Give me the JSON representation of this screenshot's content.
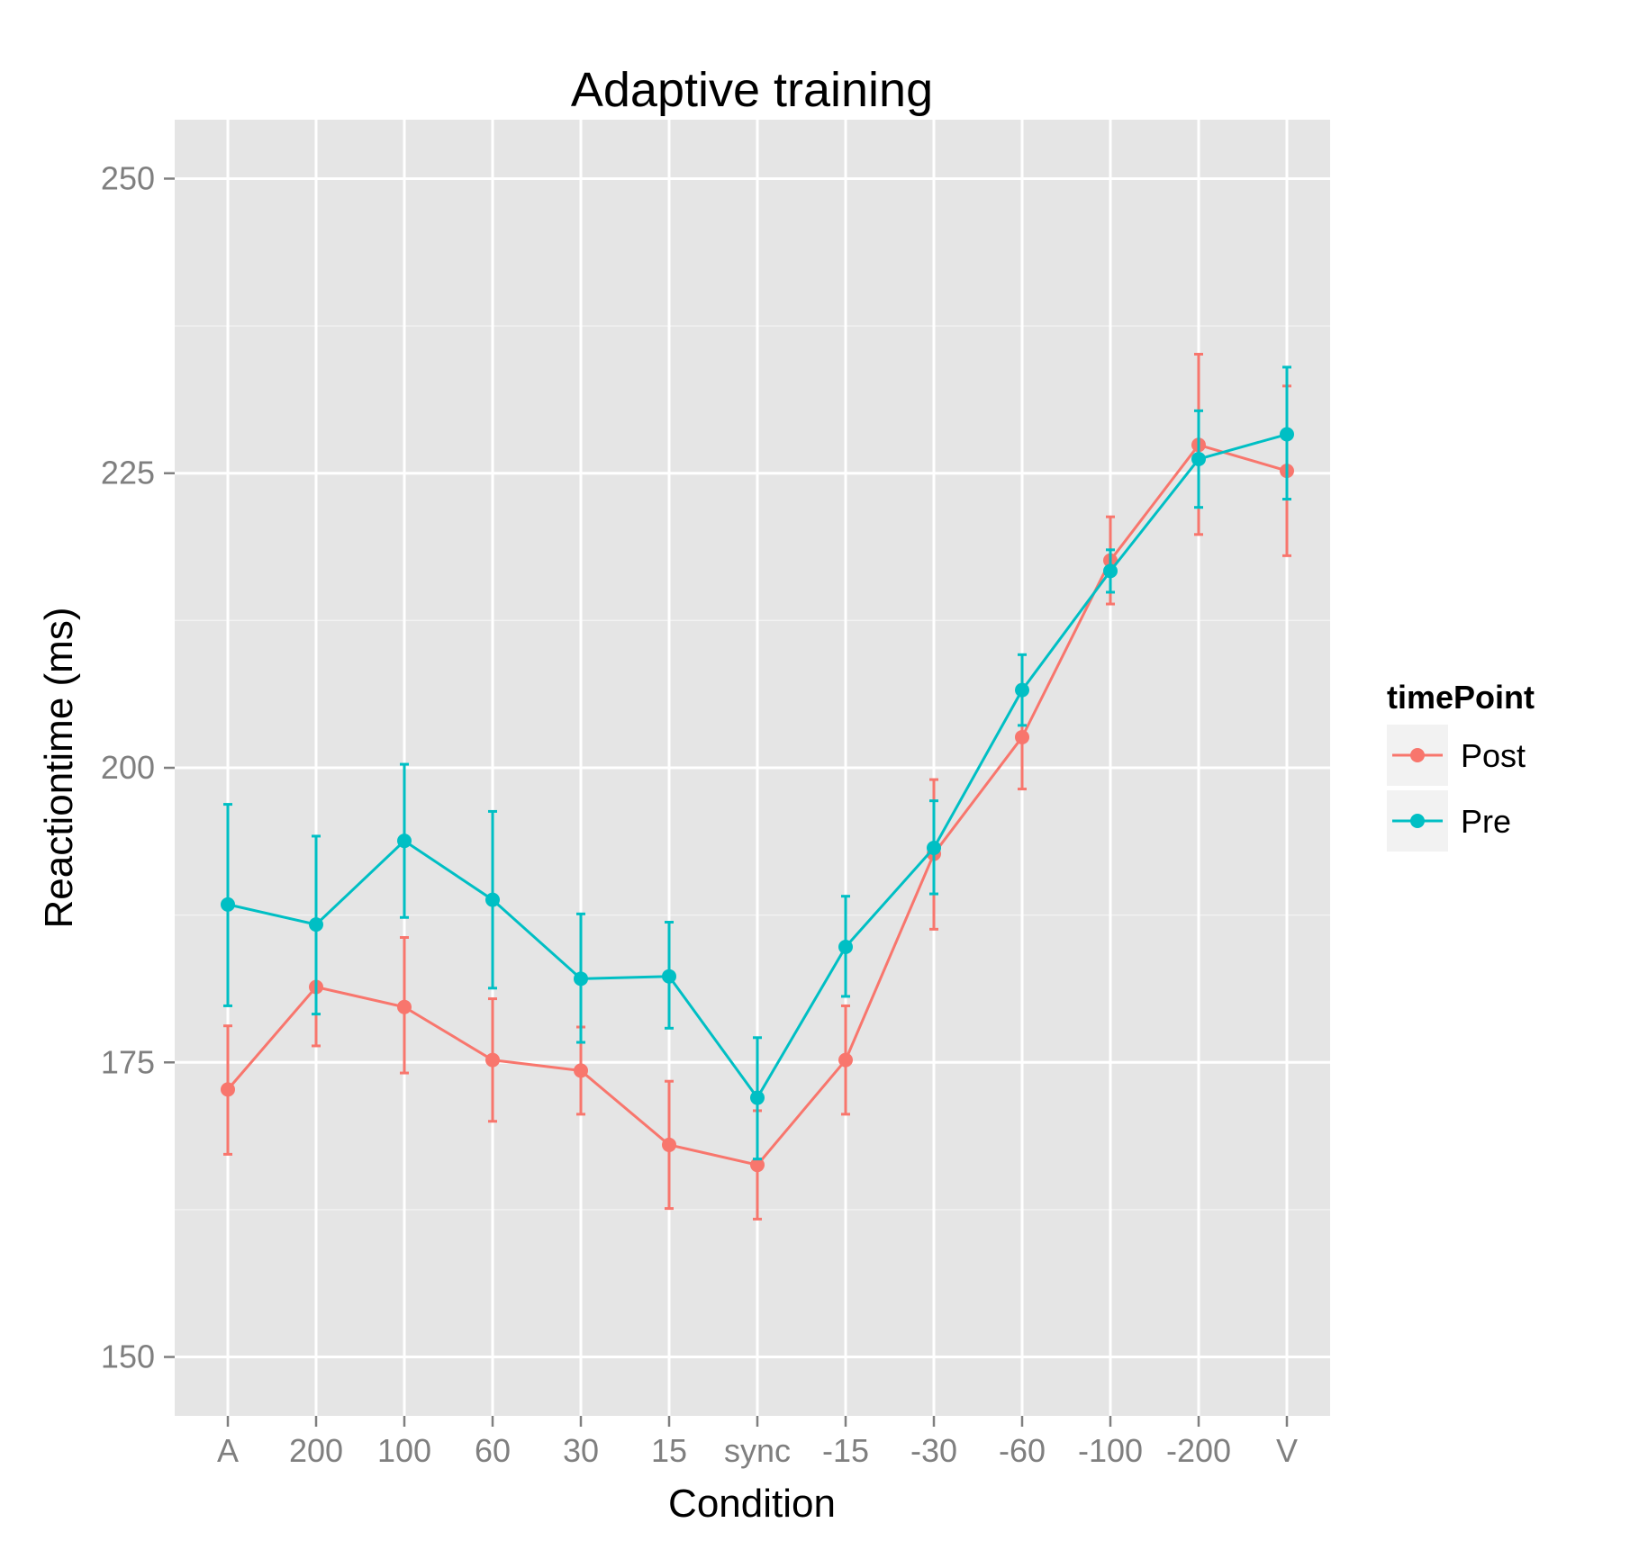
{
  "chart_data": {
    "type": "line",
    "title": "Adaptive training",
    "xlabel": "Condition",
    "ylabel": "Reactiontime (ms)",
    "categories": [
      "A",
      "200",
      "100",
      "60",
      "30",
      "15",
      "sync",
      "-15",
      "-30",
      "-60",
      "-100",
      "-200",
      "V"
    ],
    "ylim": [
      145,
      255
    ],
    "yticks": [
      150,
      175,
      200,
      225,
      250
    ],
    "grid": true,
    "legend": {
      "title": "timePoint",
      "placement": "right"
    },
    "series": [
      {
        "name": "Post",
        "color": "#F8766D",
        "values": [
          172.7,
          181.4,
          179.7,
          175.2,
          174.3,
          168.0,
          166.3,
          175.2,
          192.7,
          202.6,
          217.6,
          227.4,
          225.2
        ],
        "error_low": [
          167.2,
          176.4,
          174.1,
          170.0,
          170.6,
          162.6,
          161.7,
          170.6,
          186.3,
          198.2,
          213.9,
          219.8,
          218.0
        ],
        "error_high": [
          178.1,
          186.5,
          185.6,
          180.4,
          178.0,
          173.4,
          170.9,
          179.8,
          199.0,
          207.0,
          221.3,
          235.1,
          232.4
        ]
      },
      {
        "name": "Pre",
        "color": "#00BFC4",
        "values": [
          188.4,
          186.7,
          193.8,
          188.8,
          182.1,
          182.3,
          172.0,
          184.8,
          193.2,
          206.6,
          216.7,
          226.2,
          228.3
        ],
        "error_low": [
          179.8,
          179.1,
          187.3,
          181.3,
          176.7,
          177.9,
          166.8,
          180.6,
          189.3,
          203.6,
          214.9,
          222.1,
          222.8
        ],
        "error_high": [
          196.9,
          194.2,
          200.3,
          196.3,
          187.6,
          186.9,
          177.1,
          189.1,
          197.2,
          209.6,
          218.5,
          230.3,
          234.0
        ]
      }
    ]
  }
}
